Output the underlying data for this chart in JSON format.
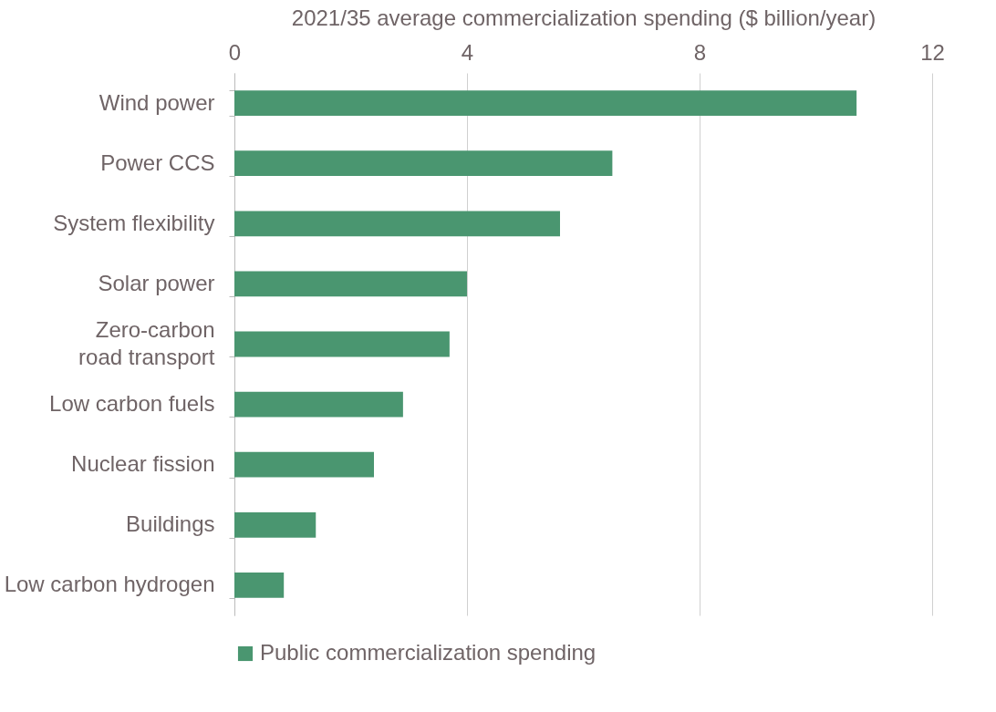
{
  "chart_data": {
    "type": "bar",
    "orientation": "horizontal",
    "xlabel": "2021/35 average commercialization spending ($ billion/year)",
    "categories": [
      "Wind power",
      "Power CCS",
      "System flexibility",
      "Solar power",
      "Zero-carbon road transport",
      "Low carbon fuels",
      "Nuclear fission",
      "Buildings",
      "Low carbon hydrogen"
    ],
    "series": [
      {
        "name": "Public commercialization spending",
        "color": "#4a9670",
        "values": [
          10.7,
          6.5,
          5.6,
          4.0,
          3.7,
          2.9,
          2.4,
          1.4,
          0.85
        ]
      }
    ],
    "xlim": [
      0,
      12
    ],
    "xticks": [
      0,
      4,
      8,
      12
    ],
    "grid": "x",
    "legend": "bottom"
  }
}
